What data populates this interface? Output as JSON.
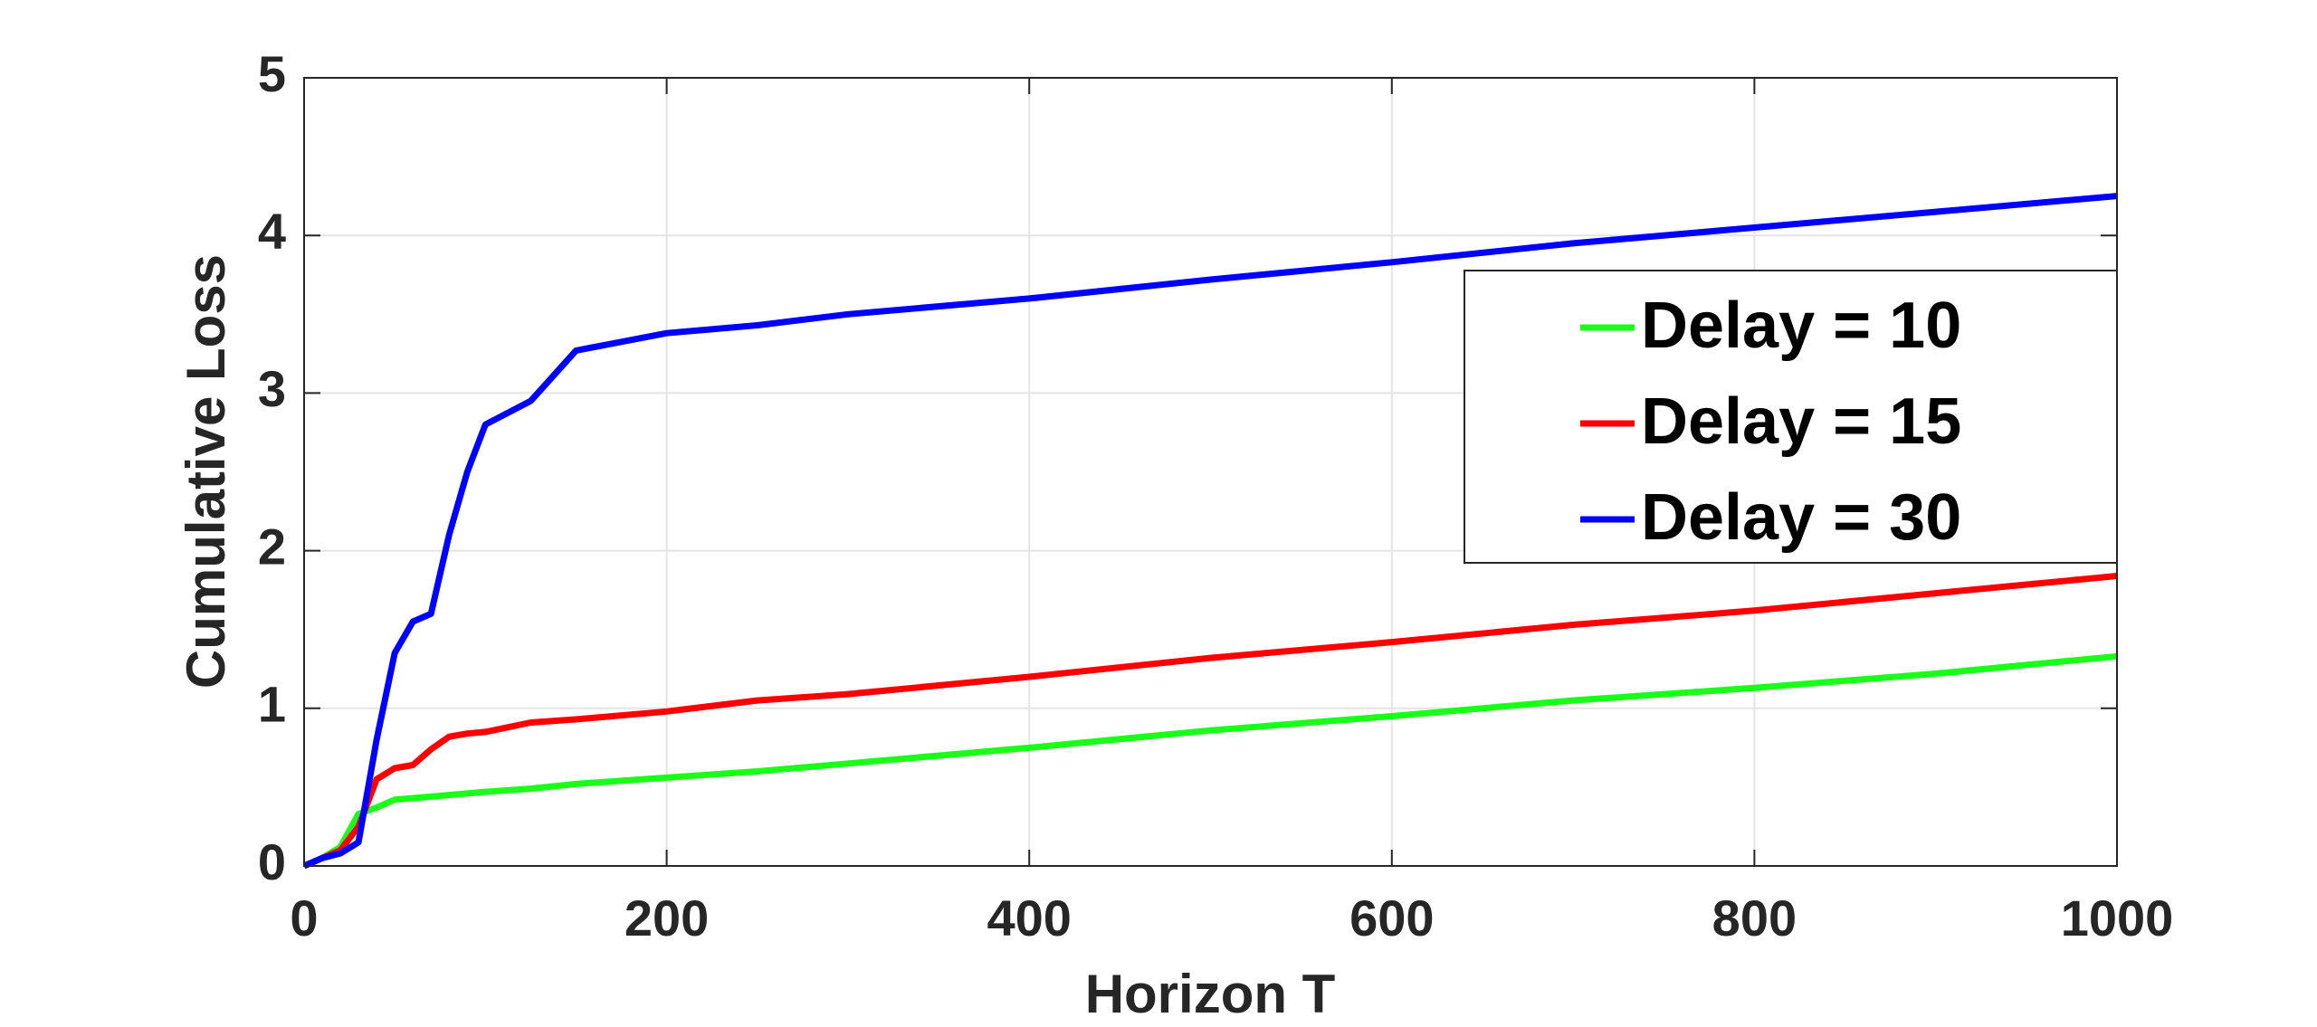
{
  "chart_data": {
    "type": "line",
    "xlabel": "Horizon T",
    "ylabel": "Cumulative Loss",
    "x": [
      0,
      10,
      20,
      30,
      40,
      50,
      60,
      70,
      80,
      90,
      100,
      125,
      150,
      200,
      250,
      300,
      400,
      500,
      600,
      700,
      800,
      900,
      1000
    ],
    "series": [
      {
        "name": "Delay = 10",
        "color": "#1aff1a",
        "values": [
          0,
          0.05,
          0.12,
          0.33,
          0.37,
          0.42,
          0.43,
          0.44,
          0.45,
          0.46,
          0.47,
          0.49,
          0.52,
          0.56,
          0.6,
          0.65,
          0.75,
          0.86,
          0.95,
          1.05,
          1.13,
          1.22,
          1.33
        ]
      },
      {
        "name": "Delay = 15",
        "color": "#ff0000",
        "values": [
          0,
          0.05,
          0.1,
          0.25,
          0.55,
          0.62,
          0.64,
          0.74,
          0.82,
          0.84,
          0.85,
          0.91,
          0.93,
          0.98,
          1.05,
          1.09,
          1.2,
          1.32,
          1.42,
          1.53,
          1.62,
          1.73,
          1.84
        ]
      },
      {
        "name": "Delay = 30",
        "color": "#0000ff",
        "values": [
          0,
          0.05,
          0.08,
          0.15,
          0.8,
          1.35,
          1.55,
          1.6,
          2.1,
          2.5,
          2.8,
          2.95,
          3.27,
          3.38,
          3.43,
          3.5,
          3.6,
          3.72,
          3.83,
          3.95,
          4.05,
          4.15,
          4.25
        ]
      }
    ],
    "xlim": [
      0,
      1000
    ],
    "xticks": [
      0,
      200,
      400,
      600,
      800,
      1000
    ],
    "ylim": [
      0,
      5
    ],
    "yticks": [
      0,
      1,
      2,
      3,
      4,
      5
    ],
    "grid": true,
    "legend": "upper right"
  }
}
